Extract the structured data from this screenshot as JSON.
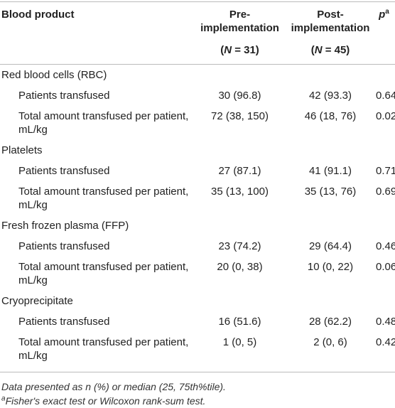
{
  "header": {
    "product": "Blood product",
    "pre": {
      "title": "Pre-implementation",
      "n": [
        "(",
        "N",
        " = 31)"
      ]
    },
    "post": {
      "title": "Post-implementation",
      "n": [
        "(",
        "N",
        " = 45)"
      ]
    },
    "p": {
      "symbol": "p",
      "sup": "a"
    }
  },
  "groups": [
    {
      "label": "Red blood cells (RBC)",
      "rows": [
        [
          "Patients transfused",
          "30 (96.8)",
          "42 (93.3)",
          "0.64"
        ],
        [
          "Total amount transfused per patient, mL/kg",
          "72 (38, 150)",
          "46 (18, 76)",
          "0.02"
        ]
      ]
    },
    {
      "label": "Platelets",
      "rows": [
        [
          "Patients transfused",
          "27 (87.1)",
          "41 (91.1)",
          "0.71"
        ],
        [
          "Total amount transfused per patient, mL/kg",
          "35 (13, 100)",
          "35 (13, 76)",
          "0.69"
        ]
      ]
    },
    {
      "label": "Fresh frozen plasma (FFP)",
      "rows": [
        [
          "Patients transfused",
          "23 (74.2)",
          "29 (64.4)",
          "0.46"
        ],
        [
          "Total amount transfused per patient, mL/kg",
          "20 (0, 38)",
          "10 (0, 22)",
          "0.06"
        ]
      ]
    },
    {
      "label": "Cryoprecipitate",
      "rows": [
        [
          "Patients transfused",
          "16 (51.6)",
          "28 (62.2)",
          "0.48"
        ],
        [
          "Total amount transfused per patient, mL/kg",
          "1 (0, 5)",
          "2 (0, 6)",
          "0.42"
        ]
      ]
    }
  ],
  "footnotes": {
    "note": "Data presented as n (%) or median (25, 75th%tile).",
    "a": {
      "sup": "a",
      "text": "Fisher's exact test or Wilcoxon rank-sum test."
    }
  }
}
